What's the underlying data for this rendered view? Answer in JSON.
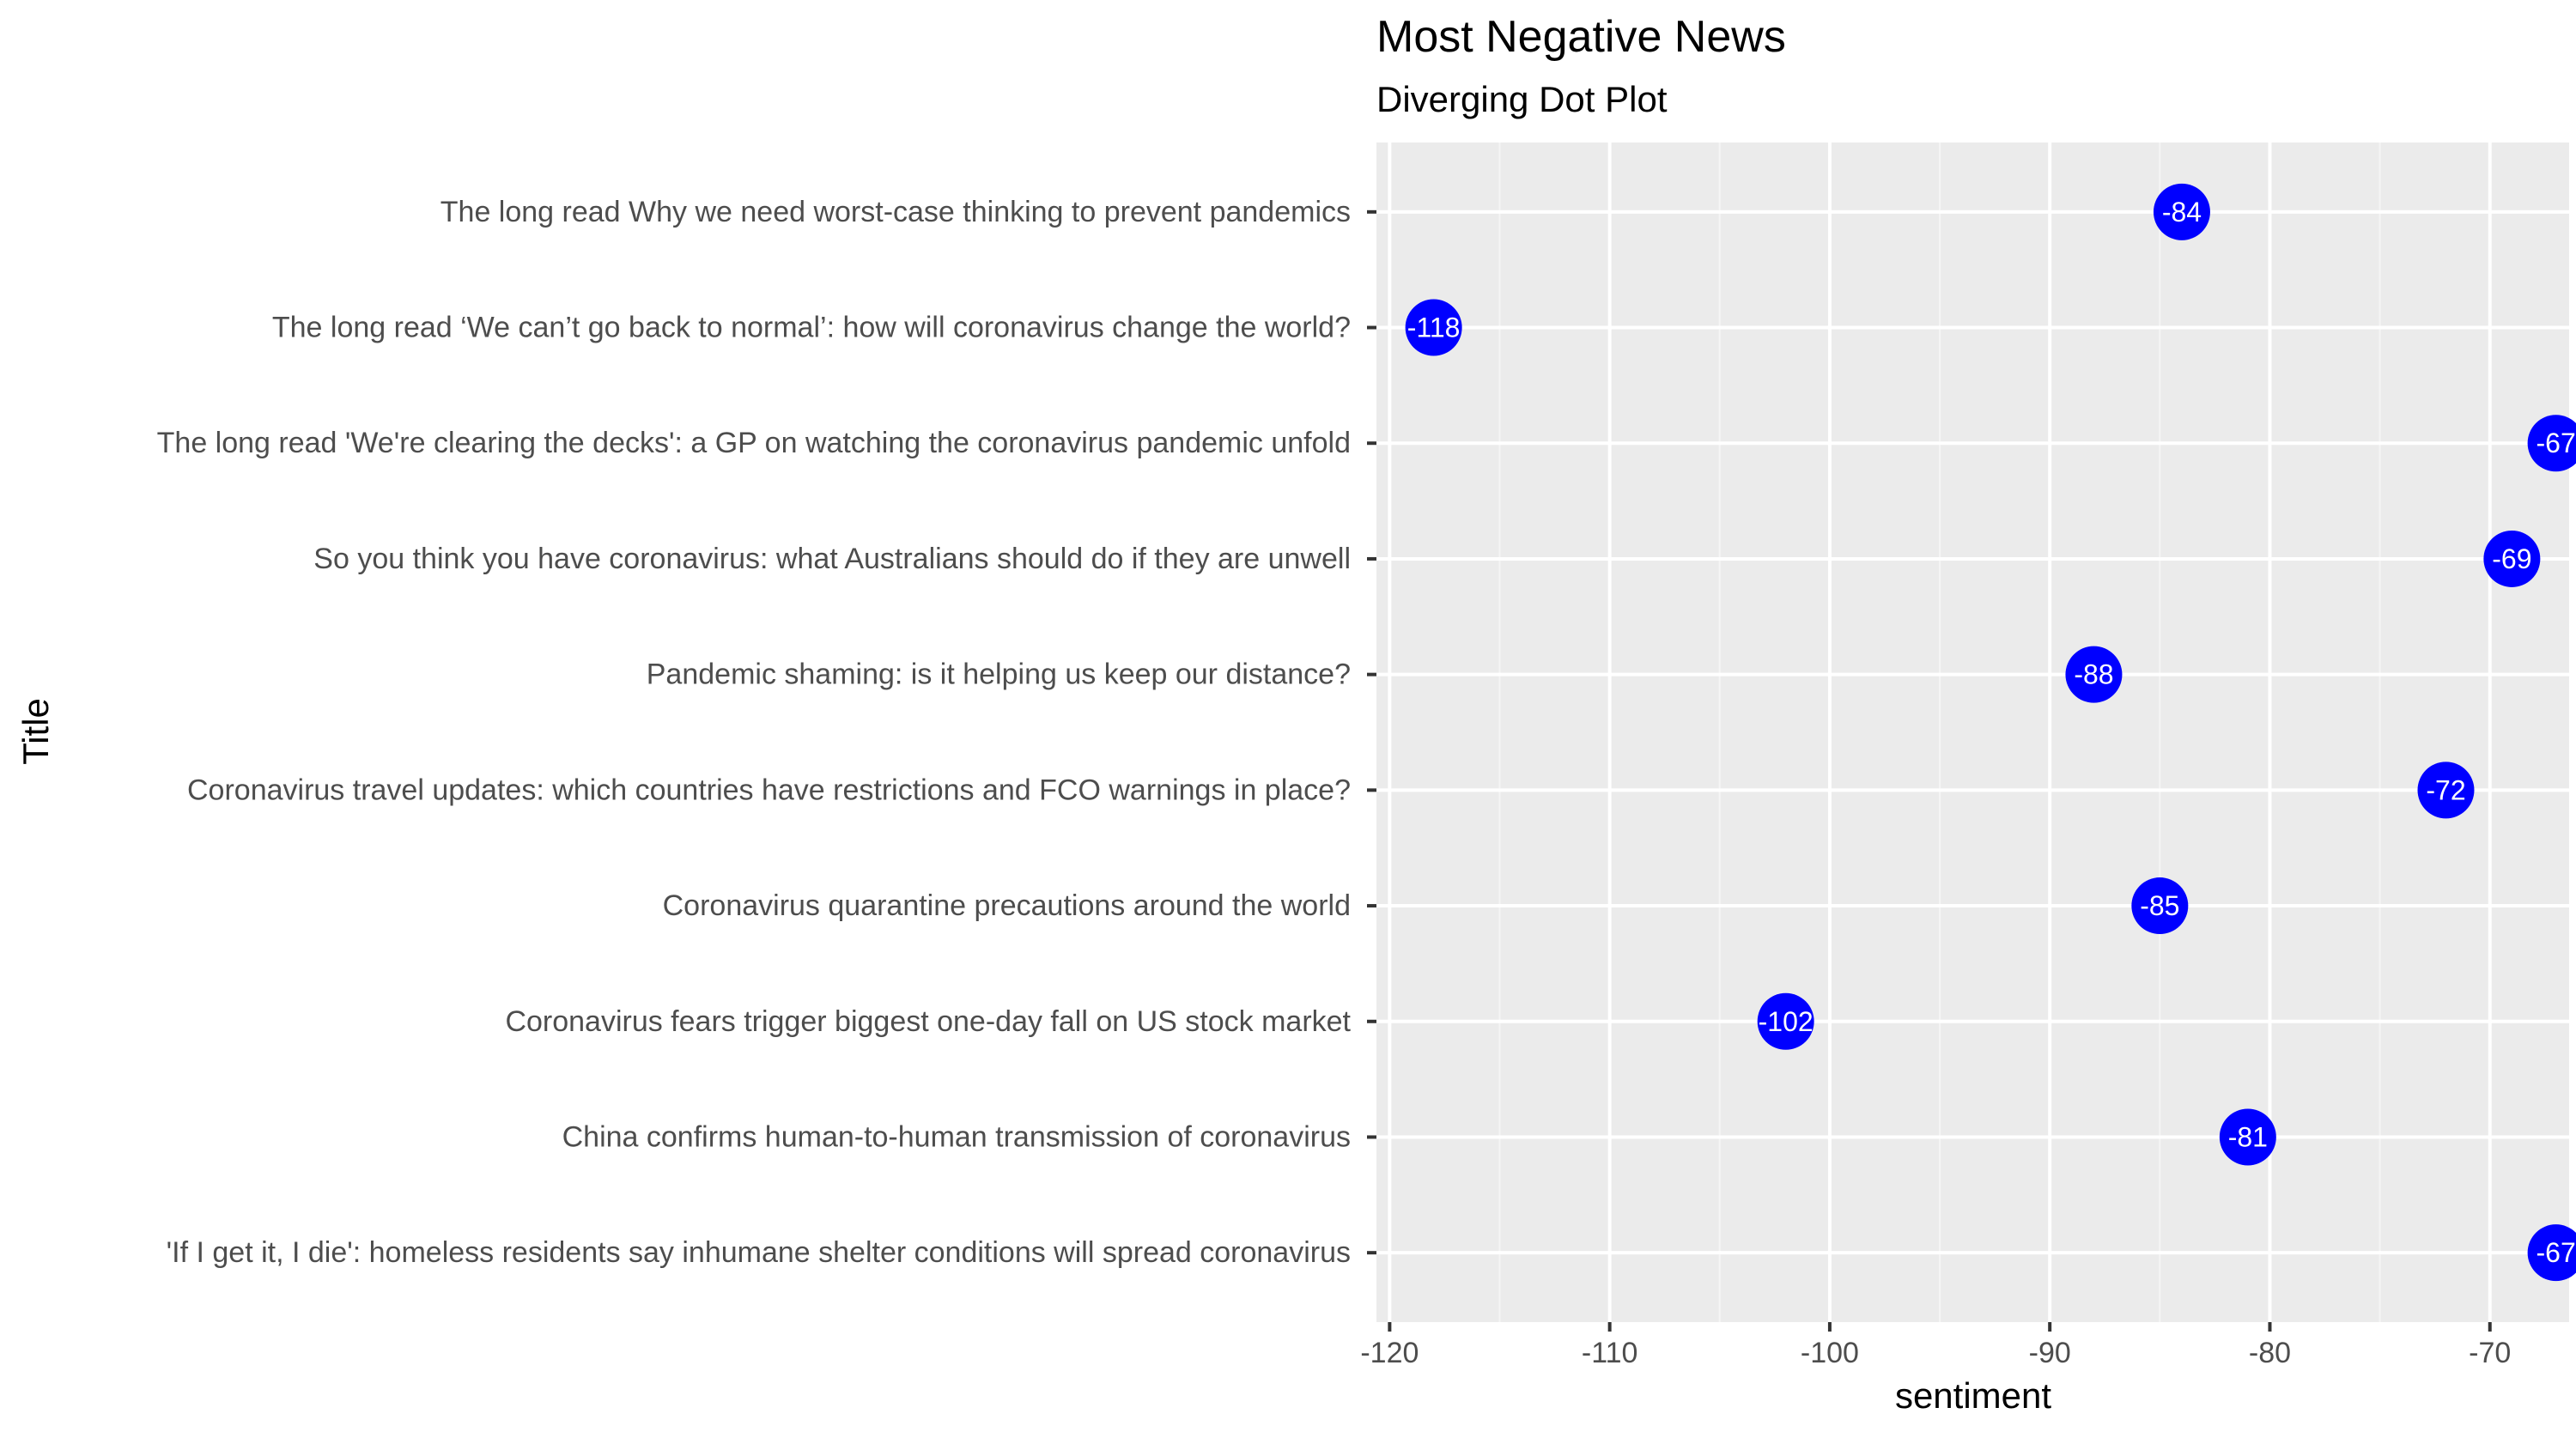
{
  "chart_data": {
    "type": "scatter",
    "title": "Most Negative News",
    "subtitle": "Diverging Dot Plot",
    "xlabel": "sentiment",
    "ylabel": "Title",
    "xlim": [
      -120.6,
      -66.4
    ],
    "x_ticks": [
      -120,
      -110,
      -100,
      -90,
      -80,
      -70
    ],
    "x_tick_labels": [
      "-120",
      "-110",
      "-100",
      "-90",
      "-80",
      "-70"
    ],
    "categories": [
      "The long read  Why we need worst-case thinking to prevent pandemics",
      "The long read  ‘We can’t go back to normal’: how will coronavirus change the world?",
      "The long read  'We're clearing the decks': a GP on watching the coronavirus pandemic unfold",
      "So you think you have coronavirus: what Australians should do if they are unwell",
      "Pandemic shaming: is it helping us keep our distance?",
      "Coronavirus travel updates: which countries have restrictions and FCO warnings in place?",
      "Coronavirus quarantine precautions around the world",
      "Coronavirus fears trigger biggest one-day fall on US stock market",
      "China confirms human-to-human transmission of coronavirus",
      "'If I get it, I die': homeless residents say inhumane shelter conditions will spread coronavirus"
    ],
    "values": [
      -84,
      -118,
      -67,
      -69,
      -88,
      -72,
      -85,
      -102,
      -81,
      -67
    ],
    "value_labels": [
      "-84",
      "-118",
      "-67",
      "-69",
      "-88",
      "-72",
      "-85",
      "-102",
      "-81",
      "-67"
    ],
    "grid": true,
    "legend": "none",
    "colors": {
      "panel_background": "#ebebeb",
      "grid_major": "#ffffff",
      "grid_minor": "#f5f5f5",
      "point": "#0000ff",
      "point_label": "#ffffff",
      "tick": "#333333"
    }
  }
}
